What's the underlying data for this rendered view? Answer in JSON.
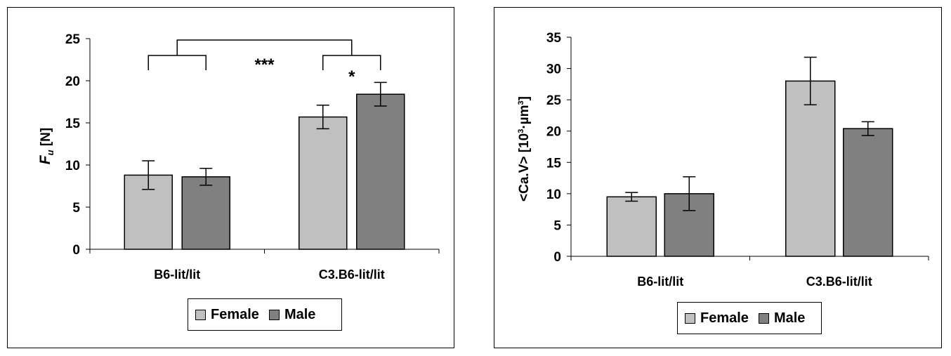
{
  "colors": {
    "female": "#c0c0c0",
    "male": "#808080"
  },
  "chart_data": [
    {
      "type": "bar",
      "categories": [
        "B6-lit/lit",
        "C3.B6-lit/lit"
      ],
      "series": [
        {
          "name": "Female",
          "values": [
            8.8,
            15.7
          ],
          "errors": [
            1.7,
            1.4
          ]
        },
        {
          "name": "Male",
          "values": [
            8.6,
            18.4
          ],
          "errors": [
            1.0,
            1.4
          ]
        }
      ],
      "ylim": [
        0,
        25
      ],
      "yticks": [
        "0",
        "5",
        "10",
        "15",
        "20",
        "25"
      ],
      "ylabel_main": "F",
      "ylabel_sub": "u",
      "ylabel_unit": " [N]",
      "significance": [
        {
          "label": "***"
        },
        {
          "label": "*"
        }
      ],
      "legend": [
        "Female",
        "Male"
      ],
      "legend_position": "bottom"
    },
    {
      "type": "bar",
      "categories": [
        "B6-lit/lit",
        "C3.B6-lit/lit"
      ],
      "series": [
        {
          "name": "Female",
          "values": [
            9.5,
            28.0
          ],
          "errors": [
            0.7,
            3.8
          ]
        },
        {
          "name": "Male",
          "values": [
            10.0,
            20.4
          ],
          "errors": [
            2.7,
            1.1
          ]
        }
      ],
      "ylim": [
        0,
        35
      ],
      "yticks": [
        "0",
        "5",
        "10",
        "15",
        "20",
        "25",
        "30",
        "35"
      ],
      "ylabel_main": "<Ca.V> [10",
      "ylabel_sup1": "3",
      "ylabel_mid": "·µm",
      "ylabel_sup2": "3",
      "ylabel_end": "]",
      "legend": [
        "Female",
        "Male"
      ],
      "legend_position": "bottom"
    }
  ]
}
